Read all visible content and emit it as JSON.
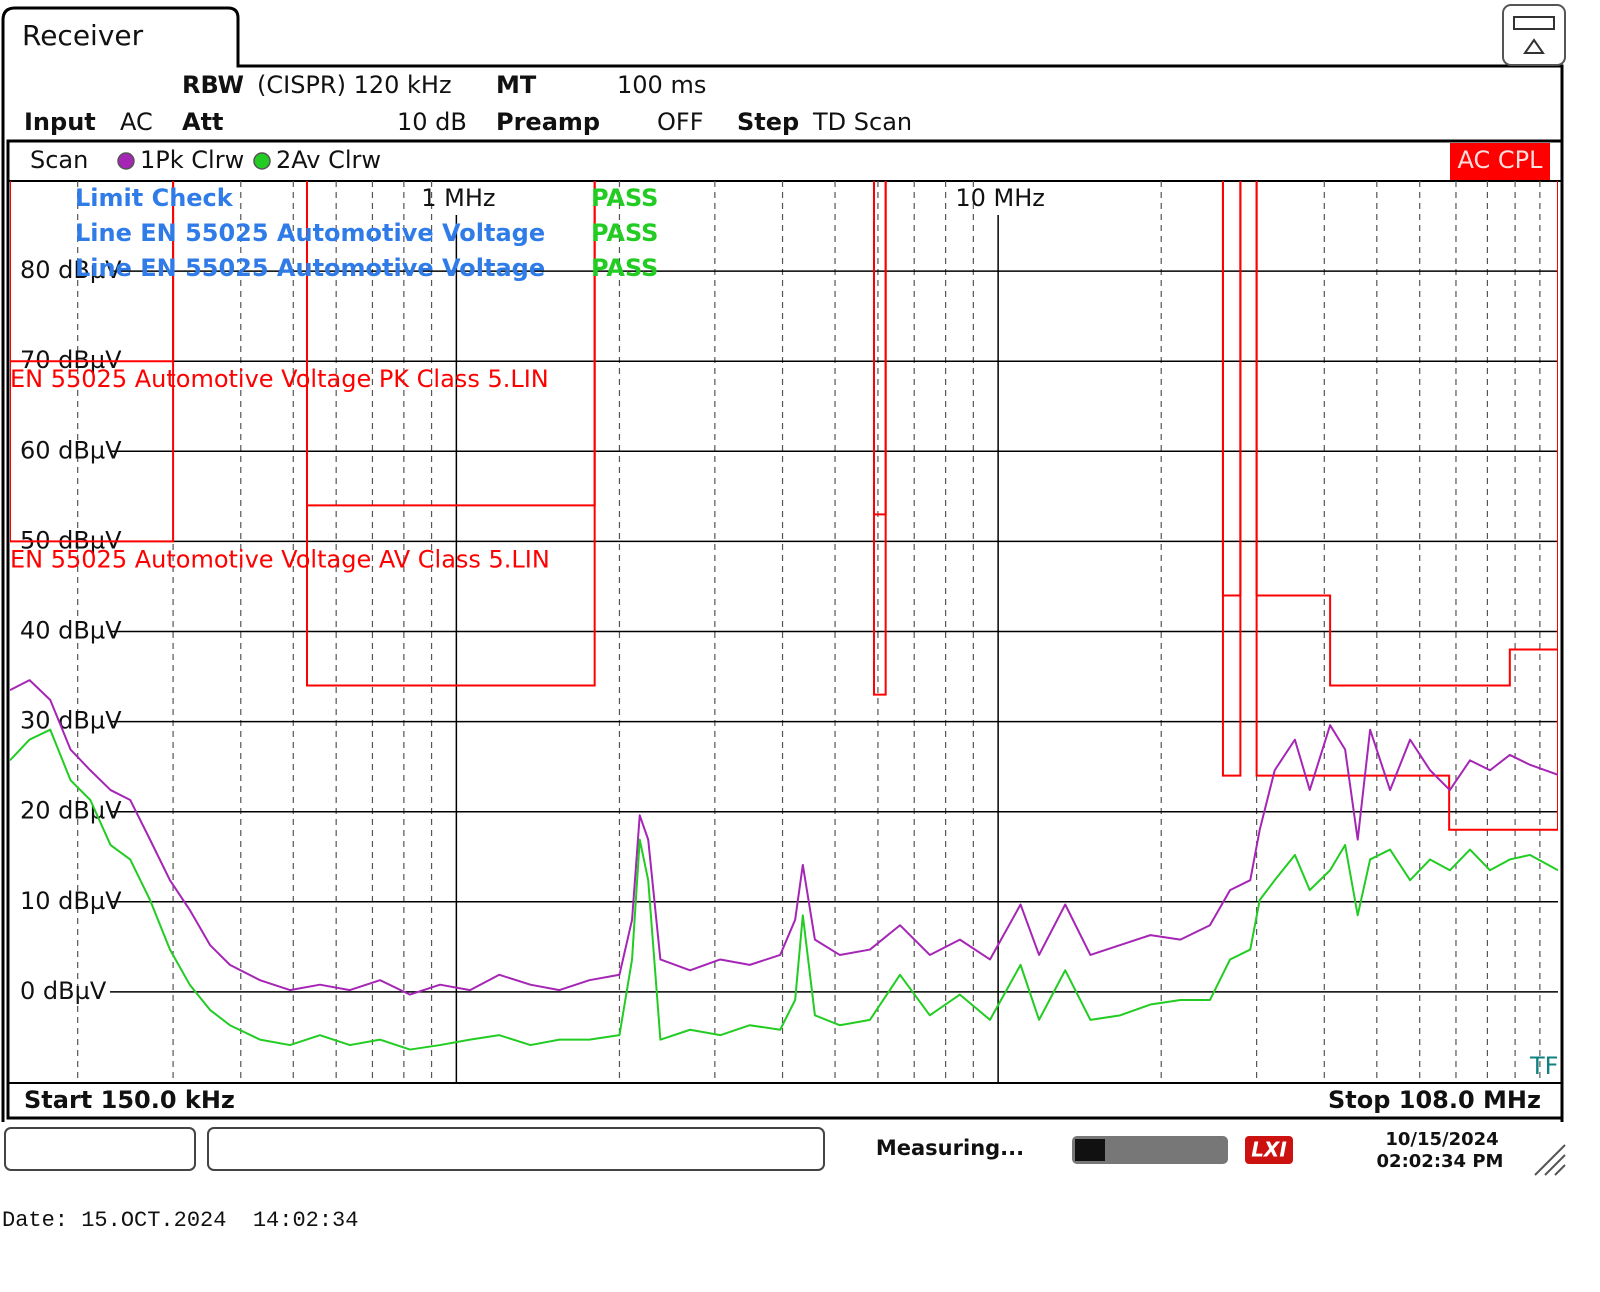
{
  "header": {
    "tab": "Receiver",
    "rbw_label": "RBW",
    "rbw_value": "(CISPR) 120 kHz",
    "mt_label": "MT",
    "mt_value": "100 ms",
    "input_label": "Input",
    "input_value": "AC",
    "att_label": "Att",
    "att_value": "10 dB",
    "preamp_label": "Preamp",
    "preamp_value": "OFF",
    "step_label": "Step",
    "step_value": "TD Scan"
  },
  "window": {
    "title": "Scan",
    "badge": "AC CPL",
    "start": "Start 150.0 kHz",
    "stop": "Stop 108.0 MHz",
    "corner": "TF"
  },
  "limit_check": {
    "title": "Limit Check",
    "result": "PASS",
    "lines": [
      {
        "name": "Line EN 55025 Automotive Voltage",
        "result": "PASS"
      },
      {
        "name": "Line EN 55025 Automotive Voltage",
        "result": "PASS"
      }
    ]
  },
  "chart_data": {
    "type": "line",
    "xscale": "log",
    "grid": true,
    "xlim": [
      0.15,
      108
    ],
    "ylim": [
      -10,
      90
    ],
    "xticks": [
      {
        "value": 1,
        "label": "1 MHz"
      },
      {
        "value": 10,
        "label": "10 MHz"
      }
    ],
    "xminor": [
      0.2,
      0.3,
      0.4,
      0.5,
      0.6,
      0.7,
      0.8,
      0.9,
      2,
      3,
      4,
      5,
      6,
      7,
      8,
      9,
      20,
      30,
      40,
      50,
      60,
      70,
      80,
      90,
      100
    ],
    "yticks": [
      {
        "value": 0,
        "label": "0 dBµV"
      },
      {
        "value": 10,
        "label": "10 dBµV"
      },
      {
        "value": 20,
        "label": "20 dBµV"
      },
      {
        "value": 30,
        "label": "30 dBµV"
      },
      {
        "value": 40,
        "label": "40 dBµV"
      },
      {
        "value": 50,
        "label": "50 dBµV"
      },
      {
        "value": 60,
        "label": "60 dBµV"
      },
      {
        "value": 70,
        "label": "70 dBµV"
      },
      {
        "value": 80,
        "label": "80 dBµV"
      }
    ],
    "x": [
      0.15,
      0.163,
      0.178,
      0.194,
      0.211,
      0.23,
      0.25,
      0.272,
      0.296,
      0.322,
      0.351,
      0.382,
      0.434,
      0.493,
      0.56,
      0.636,
      0.723,
      0.821,
      0.933,
      1.06,
      1.2,
      1.37,
      1.55,
      1.76,
      2.0,
      2.11,
      2.18,
      2.26,
      2.38,
      2.7,
      3.07,
      3.48,
      3.96,
      4.22,
      4.36,
      4.59,
      5.1,
      5.8,
      6.59,
      7.48,
      8.5,
      9.66,
      11.0,
      11.9,
      13.3,
      14.8,
      16.8,
      19.1,
      21.7,
      24.6,
      26.8,
      29.2,
      30.4,
      32.4,
      35.3,
      37.6,
      41.0,
      43.7,
      46.1,
      48.6,
      52.9,
      57.6,
      62.7,
      68.2,
      74.3,
      80.9,
      88.0,
      95.9,
      108
    ],
    "series": [
      {
        "name": "1Pk Clrw",
        "color": "#a526b5",
        "values": [
          33.5,
          34.6,
          32.4,
          26.9,
          24.6,
          22.4,
          21.3,
          16.9,
          12.4,
          9.1,
          5.2,
          3.0,
          1.3,
          0.2,
          0.8,
          0.2,
          1.3,
          -0.3,
          0.8,
          0.2,
          1.9,
          0.8,
          0.2,
          1.3,
          1.9,
          8.0,
          19.6,
          16.9,
          3.6,
          2.4,
          3.6,
          3.0,
          4.1,
          8.0,
          14.1,
          5.8,
          4.1,
          4.7,
          7.4,
          4.1,
          5.8,
          3.6,
          9.7,
          4.1,
          9.7,
          4.1,
          5.2,
          6.3,
          5.8,
          7.4,
          11.3,
          12.4,
          18.0,
          24.6,
          28.0,
          22.4,
          29.6,
          26.9,
          16.9,
          29.1,
          22.4,
          28.0,
          24.6,
          22.4,
          25.7,
          24.6,
          26.3,
          25.2,
          24.1
        ]
      },
      {
        "name": "2Av Clrw",
        "color": "#22cc22",
        "values": [
          25.7,
          28.0,
          29.1,
          23.5,
          21.3,
          16.3,
          14.7,
          10.2,
          4.7,
          0.8,
          -2.0,
          -3.7,
          -5.3,
          -5.9,
          -4.8,
          -5.9,
          -5.3,
          -6.4,
          -5.9,
          -5.3,
          -4.8,
          -5.9,
          -5.3,
          -5.3,
          -4.8,
          3.6,
          16.9,
          12.4,
          -5.3,
          -4.2,
          -4.8,
          -3.7,
          -4.2,
          -0.9,
          8.5,
          -2.6,
          -3.7,
          -3.1,
          1.9,
          -2.6,
          -0.3,
          -3.1,
          3.0,
          -3.1,
          2.4,
          -3.1,
          -2.6,
          -1.4,
          -0.9,
          -0.9,
          3.6,
          4.7,
          10.2,
          12.4,
          15.2,
          11.3,
          13.5,
          16.3,
          8.5,
          14.7,
          15.8,
          12.4,
          14.7,
          13.5,
          15.8,
          13.5,
          14.7,
          15.2,
          13.5
        ]
      }
    ],
    "limit_lines": [
      {
        "name": "EN 55025 Automotive Voltage PK Class 5.LIN",
        "color": "#ff0000",
        "x": [
          0.15,
          0.3,
          null,
          0.53,
          1.8,
          null,
          5.9,
          6.2,
          null,
          26,
          28,
          null,
          30,
          41,
          41,
          88,
          88,
          108
        ],
        "values": [
          70,
          70,
          null,
          54,
          54,
          null,
          53,
          53,
          null,
          44,
          44,
          null,
          44,
          44,
          34,
          34,
          38,
          38
        ]
      },
      {
        "name": "EN 55025 Automotive Voltage AV Class 5.LIN",
        "color": "#ff0000",
        "x": [
          0.15,
          0.3,
          null,
          0.53,
          1.8,
          null,
          5.9,
          6.2,
          null,
          26,
          28,
          null,
          30,
          68,
          68,
          108
        ],
        "values": [
          50,
          50,
          null,
          34,
          34,
          null,
          33,
          33,
          null,
          24,
          24,
          null,
          24,
          24,
          18,
          18
        ]
      }
    ]
  },
  "status": {
    "message": "Measuring...",
    "logo": "LXI",
    "date": "10/15/2024",
    "time": "02:02:34 PM"
  },
  "footer": "Date: 15.OCT.2024  14:02:34"
}
